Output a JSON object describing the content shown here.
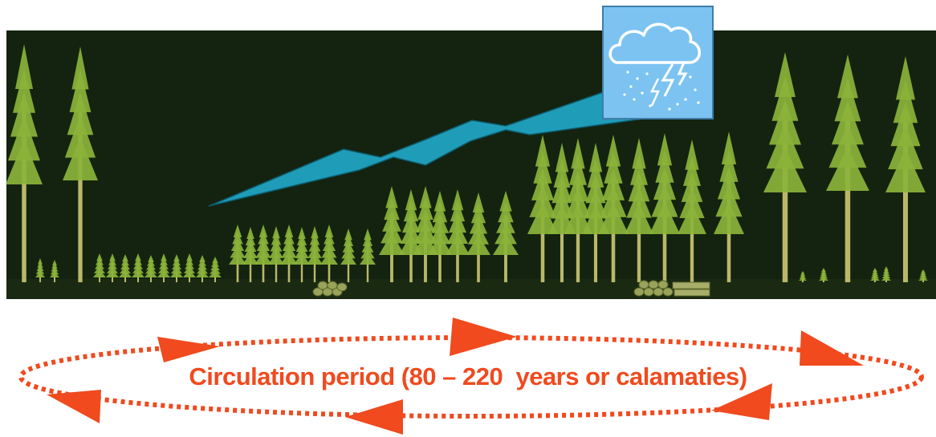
{
  "cycle": {
    "label": "Circulation period (80 – 220  years or calamaties)",
    "color": "#f04a1e"
  },
  "forest": {
    "background_color": "#13230f",
    "tree_color": "#8bb33a",
    "trunk_color": "#b9b86a"
  },
  "storm": {
    "icon": "storm-cloud-lightning-icon",
    "box_color": "#7cc3f2",
    "bolt_color": "#1f9cb8"
  }
}
